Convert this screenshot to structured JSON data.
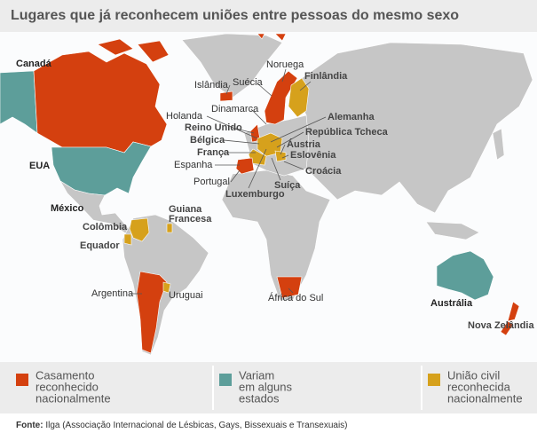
{
  "title": "Lugares que já reconhecem uniões entre pessoas do mesmo sexo",
  "labels": [
    "Canadá",
    "EUA",
    "México",
    "Guiana",
    "Francesa",
    "Colômbia",
    "Equador",
    "Argentina",
    "Uruguai",
    "África do Sul",
    "Austrália",
    "Nova Zelândia",
    "Islândia",
    "Noruega",
    "Suécia",
    "Finlândia",
    "Holanda",
    "Dinamarca",
    "Reino Unido",
    "Bélgica",
    "França",
    "Espanha",
    "Portugal",
    "Luxemburgo",
    "Suíça",
    "Alemanha",
    "República Tcheca",
    "Áustria",
    "Eslovênia",
    "Croácia"
  ],
  "legend": [
    {
      "lines": [
        "Casamento",
        "reconhecido",
        "nacionalmente"
      ],
      "color": "#d4400f"
    },
    {
      "lines": [
        "Variam",
        "em alguns",
        "estados"
      ],
      "color": "#5d9e9a"
    },
    {
      "lines": [
        "União civil",
        "reconhecida",
        "nacionalmente"
      ],
      "color": "#d6a11c"
    }
  ],
  "source": {
    "label": "Fonte:",
    "text": "Ilga (Associação Internacional de Lésbicas, Gays, Bissexuais e Transexuais)"
  }
}
